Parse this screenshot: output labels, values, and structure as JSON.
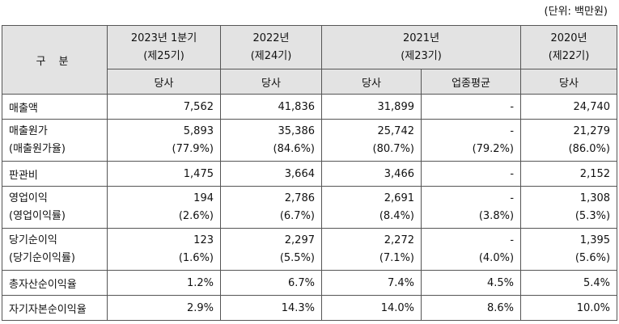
{
  "unit_note": "(단위: 백만원)",
  "header": {
    "gubun": "구 분",
    "periods": [
      {
        "year": "2023년 1분기",
        "term": "(제25기)"
      },
      {
        "year": "2022년",
        "term": "(제24기)"
      },
      {
        "year": "2021년",
        "term": "(제23기)"
      },
      {
        "year": "2020년",
        "term": "(제22기)"
      }
    ],
    "sub": {
      "company": "당사",
      "industry": "업종평균"
    }
  },
  "rows": [
    {
      "label": "매출액",
      "values": [
        "7,562",
        "41,836",
        "31,899",
        "-",
        "24,740"
      ]
    },
    {
      "label": "매출원가",
      "label2": "(매출원가율)",
      "values": [
        "5,893",
        "35,386",
        "25,742",
        "-",
        "21,279"
      ],
      "values2": [
        "(77.9%)",
        "(84.6%)",
        "(80.7%)",
        "(79.2%)",
        "(86.0%)"
      ]
    },
    {
      "label": "판관비",
      "values": [
        "1,475",
        "3,664",
        "3,466",
        "-",
        "2,152"
      ]
    },
    {
      "label": "영업이익",
      "label2": "(영업이익률)",
      "values": [
        "194",
        "2,786",
        "2,691",
        "-",
        "1,308"
      ],
      "values2": [
        "(2.6%)",
        "(6.7%)",
        "(8.4%)",
        "(3.8%)",
        "(5.3%)"
      ]
    },
    {
      "label": "당기순이익",
      "label2": "(당기순이익률)",
      "values": [
        "123",
        "2,297",
        "2,272",
        "-",
        "1,395"
      ],
      "values2": [
        "(1.6%)",
        "(5.5%)",
        "(7.1%)",
        "(4.0%)",
        "(5.6%)"
      ]
    },
    {
      "label": "총자산순이익율",
      "values": [
        "1.2%",
        "6.7%",
        "7.4%",
        "4.5%",
        "5.4%"
      ]
    },
    {
      "label": "자기자본순이익율",
      "values": [
        "2.9%",
        "14.3%",
        "14.0%",
        "8.6%",
        "10.0%"
      ]
    }
  ]
}
